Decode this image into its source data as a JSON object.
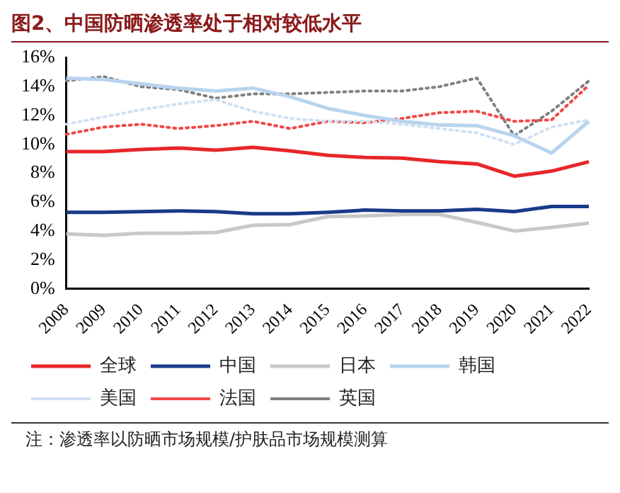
{
  "chart_data": {
    "type": "line",
    "title": "图2、中国防晒渗透率处于相对较低水平",
    "categories": [
      "2008",
      "2009",
      "2010",
      "2011",
      "2012",
      "2013",
      "2014",
      "2015",
      "2016",
      "2017",
      "2018",
      "2019",
      "2020",
      "2021",
      "2022"
    ],
    "series": [
      {
        "name": "全球",
        "color": "#e8262a",
        "line_style": "solid",
        "values": [
          9.5,
          9.5,
          9.65,
          9.75,
          9.6,
          9.8,
          9.55,
          9.25,
          9.1,
          9.05,
          8.8,
          8.65,
          7.8,
          8.15,
          8.8
        ]
      },
      {
        "name": "中国",
        "color": "#1a3a8a",
        "line_style": "solid",
        "values": [
          5.3,
          5.3,
          5.35,
          5.4,
          5.35,
          5.2,
          5.2,
          5.3,
          5.45,
          5.4,
          5.4,
          5.5,
          5.35,
          5.7,
          5.7
        ]
      },
      {
        "name": "日本",
        "color": "#c8c8c8",
        "line_style": "solid",
        "values": [
          3.8,
          3.7,
          3.85,
          3.85,
          3.9,
          4.4,
          4.45,
          5.0,
          5.05,
          5.15,
          5.15,
          4.6,
          4.0,
          4.25,
          4.55
        ]
      },
      {
        "name": "韩国",
        "color": "#b8d4ee",
        "line_style": "solid",
        "values": [
          14.6,
          14.5,
          14.2,
          13.9,
          13.7,
          13.9,
          13.3,
          12.5,
          12.0,
          11.6,
          11.35,
          11.3,
          10.6,
          9.4,
          11.6
        ]
      },
      {
        "name": "美国",
        "color": "#d0e0f2",
        "line_style": "dotted",
        "values": [
          11.4,
          11.9,
          12.4,
          12.8,
          13.1,
          12.3,
          11.8,
          11.6,
          11.6,
          11.4,
          11.1,
          10.8,
          10.0,
          11.2,
          11.7
        ]
      },
      {
        "name": "法国",
        "color": "#f04848",
        "line_style": "dotted",
        "values": [
          10.7,
          11.2,
          11.4,
          11.1,
          11.3,
          11.6,
          11.1,
          11.6,
          11.5,
          11.8,
          12.2,
          12.3,
          11.6,
          11.7,
          14.1
        ]
      },
      {
        "name": "英国",
        "color": "#808080",
        "line_style": "dotted",
        "values": [
          14.4,
          14.7,
          14.0,
          13.8,
          13.2,
          13.5,
          13.5,
          13.6,
          13.7,
          13.7,
          14.0,
          14.6,
          10.6,
          12.3,
          14.4
        ]
      }
    ],
    "ylim": [
      0,
      16
    ],
    "yticks": [
      {
        "value": 0,
        "label": "0%"
      },
      {
        "value": 2,
        "label": "2%"
      },
      {
        "value": 4,
        "label": "4%"
      },
      {
        "value": 6,
        "label": "6%"
      },
      {
        "value": 8,
        "label": "8%"
      },
      {
        "value": 10,
        "label": "10%"
      },
      {
        "value": 12,
        "label": "12%"
      },
      {
        "value": 14,
        "label": "14%"
      },
      {
        "value": 16,
        "label": "16%"
      }
    ],
    "grid": false,
    "legend": "bottom",
    "marker": "none",
    "annotations": [
      "注：渗透率以防晒市场规模/护肤品市场规模测算"
    ]
  }
}
